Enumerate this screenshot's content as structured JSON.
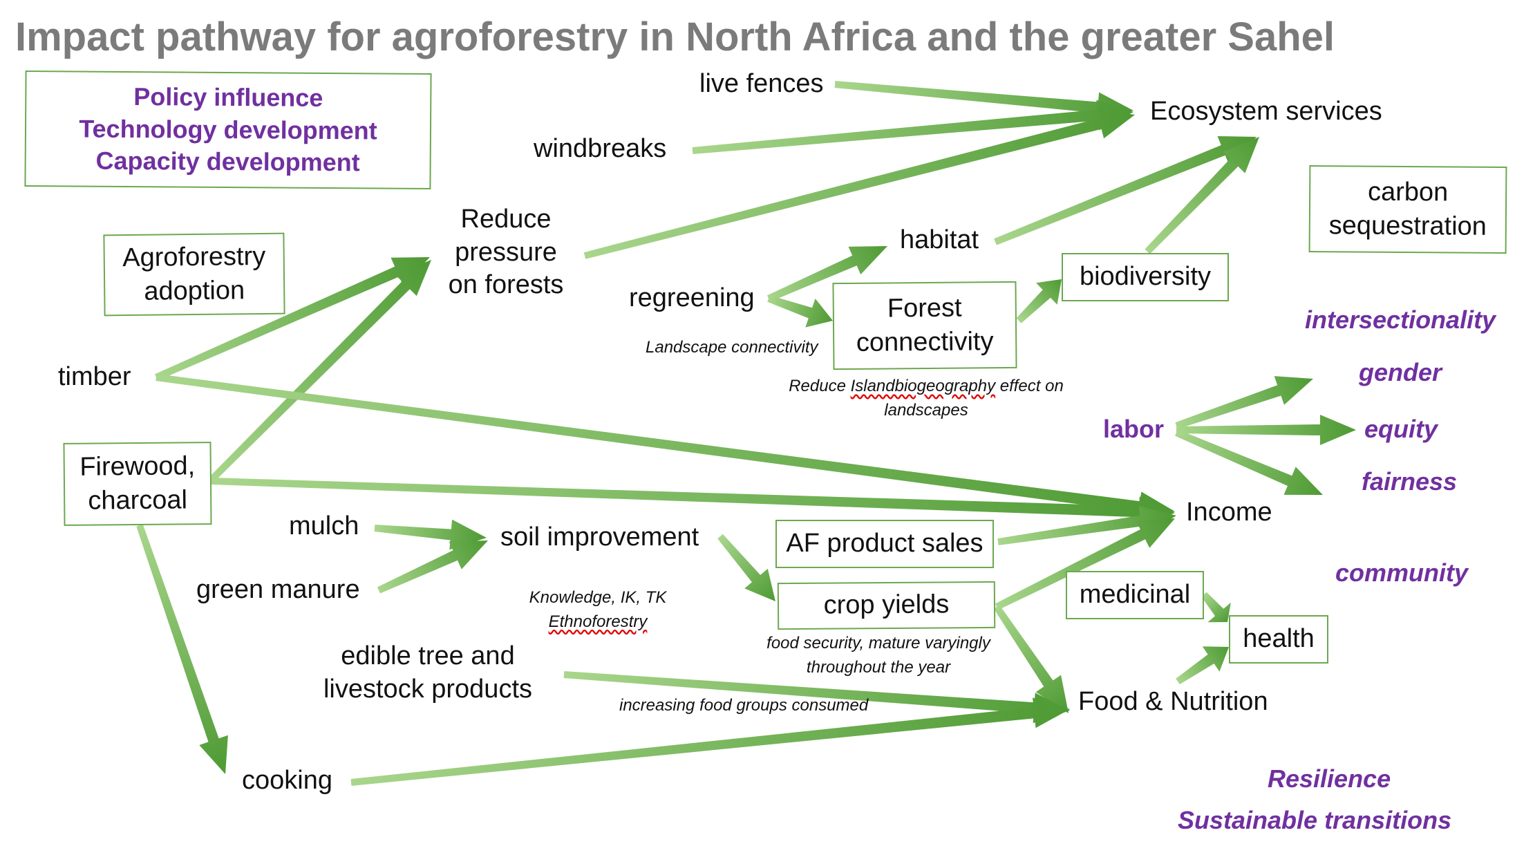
{
  "title": "Impact pathway for agroforestry in North Africa and the greater Sahel",
  "colors": {
    "arrow_light": "#a9d68c",
    "arrow_dark": "#4e9a34",
    "box_border": "#6aa84f",
    "purple": "#7030a0",
    "title_gray": "#7b7b7b"
  },
  "boxes": {
    "interventions": [
      "Policy influence",
      "Technology development",
      "Capacity development"
    ],
    "agroforestry_adoption": [
      "Agroforestry",
      "adoption"
    ],
    "firewood": [
      "Firewood,",
      "charcoal"
    ],
    "forest_connectivity": [
      "Forest",
      "connectivity"
    ],
    "biodiversity": "biodiversity",
    "carbon": [
      "carbon",
      "sequestration"
    ],
    "af_product_sales": "AF product sales",
    "crop_yields": "crop yields",
    "medicinal": "medicinal",
    "health": "health"
  },
  "nodes": {
    "live_fences": "live fences",
    "windbreaks": "windbreaks",
    "ecosystem_services": "Ecosystem services",
    "reduce_pressure": [
      "Reduce",
      "pressure",
      "on forests"
    ],
    "timber": "timber",
    "habitat": "habitat",
    "regreening": "regreening",
    "mulch": "mulch",
    "green_manure": "green manure",
    "soil_improvement": "soil improvement",
    "edible": [
      "edible tree and",
      "livestock products"
    ],
    "cooking": "cooking",
    "income": "Income",
    "food_nutrition": "Food & Nutrition"
  },
  "notes": {
    "landscape": "Landscape connectivity",
    "island_pre": "Reduce ",
    "island_word": "Islandbiogeography",
    "island_post": " effect on",
    "island_line2": "landscapes",
    "knowledge": "Knowledge, IK, TK",
    "ethno": "Ethnoforestry",
    "food_security": [
      "food security, mature varyingly",
      "throughout the year"
    ],
    "food_groups": "increasing food groups consumed"
  },
  "purple_labels": {
    "intersectionality": "intersectionality",
    "labor": "labor",
    "gender": "gender",
    "equity": "equity",
    "fairness": "fairness",
    "community": "community",
    "resilience": "Resilience",
    "sustainable": "Sustainable transitions"
  }
}
